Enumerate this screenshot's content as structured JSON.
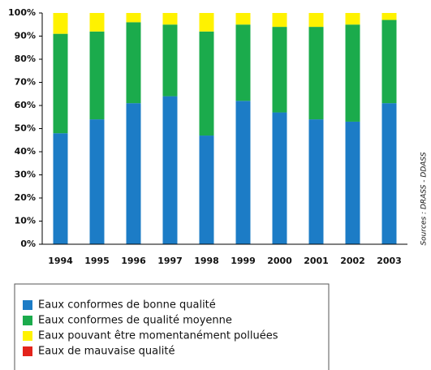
{
  "chart_data": {
    "type": "stacked_bar",
    "source": "Sources : DRASS - DDASS",
    "categories": [
      "1994",
      "1995",
      "1996",
      "1997",
      "1998",
      "1999",
      "2000",
      "2001",
      "2002",
      "2003"
    ],
    "series": [
      {
        "name": "Eaux conformes de bonne qualité",
        "color": "#1c7cc6",
        "values": [
          48,
          54,
          61,
          64,
          47,
          62,
          57,
          54,
          53,
          61
        ]
      },
      {
        "name": "Eaux conformes de qualité moyenne",
        "color": "#1bab4c",
        "values": [
          43,
          38,
          35,
          31,
          45,
          33,
          37,
          40,
          42,
          36
        ]
      },
      {
        "name": "Eaux pouvant être momentanément polluées",
        "color": "#fff200",
        "values": [
          9,
          8,
          4,
          5,
          8,
          5,
          6,
          6,
          5,
          3
        ]
      },
      {
        "name": "Eaux de mauvaise qualité",
        "color": "#e3231b",
        "values": [
          0,
          0,
          0,
          0,
          0,
          0,
          0,
          0,
          0,
          0
        ]
      }
    ],
    "ylim": [
      0,
      100
    ],
    "yticks": [
      {
        "value": 0,
        "label": "0%"
      },
      {
        "value": 10,
        "label": "10%"
      },
      {
        "value": 20,
        "label": "20%"
      },
      {
        "value": 30,
        "label": "30%"
      },
      {
        "value": 40,
        "label": "40%"
      },
      {
        "value": 50,
        "label": "50%"
      },
      {
        "value": 60,
        "label": "60%"
      },
      {
        "value": 70,
        "label": "70%"
      },
      {
        "value": 80,
        "label": "80%"
      },
      {
        "value": 90,
        "label": "90%"
      },
      {
        "value": 100,
        "label": "100%"
      }
    ],
    "grid": false
  }
}
